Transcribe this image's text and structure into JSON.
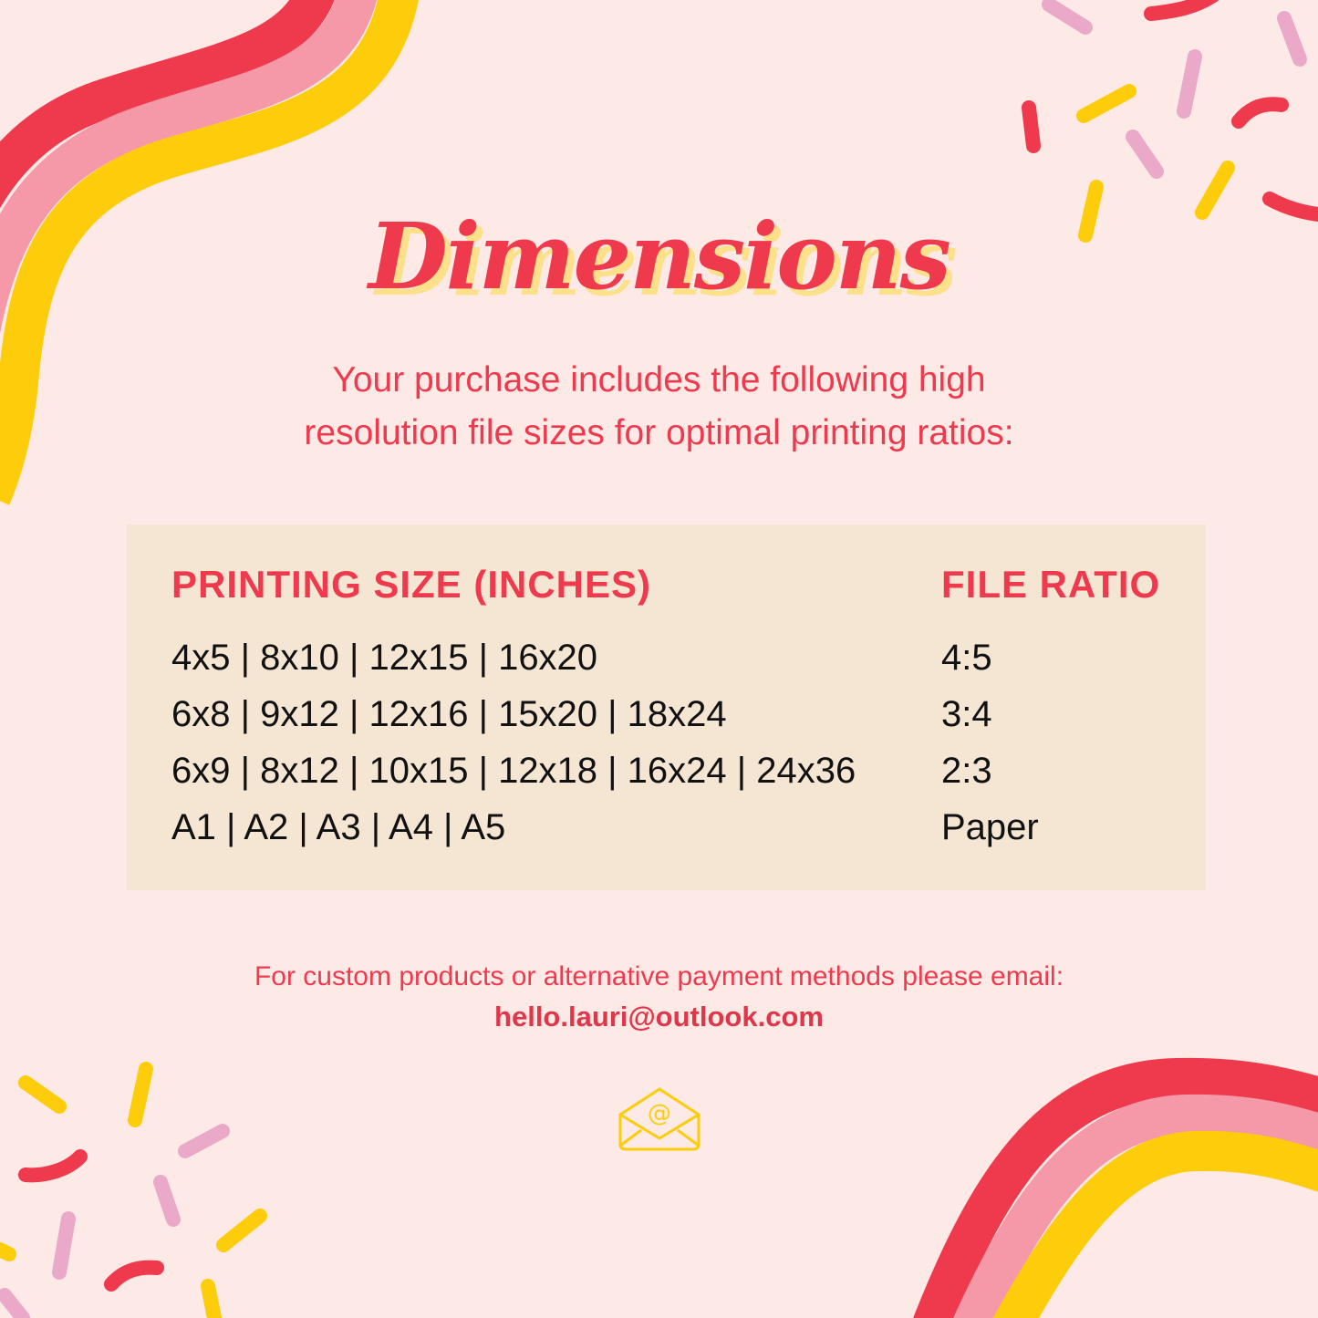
{
  "title": "Dimensions",
  "intro": [
    "Your purchase includes the following high",
    "resolution file sizes for optimal printing ratios:"
  ],
  "table": {
    "headers": [
      "PRINTING SIZE (INCHES)",
      "FILE RATIO"
    ],
    "rows": [
      {
        "sizes": "4x5 | 8x10 | 12x15 | 16x20",
        "ratio": "4:5"
      },
      {
        "sizes": "6x8 | 9x12 | 12x16 | 15x20 | 18x24",
        "ratio": "3:4"
      },
      {
        "sizes": "6x9 | 8x12 | 10x15 | 12x18 | 16x24 | 24x36",
        "ratio": "2:3"
      },
      {
        "sizes": "A1 | A2 | A3 | A4 | A5",
        "ratio": "Paper"
      }
    ]
  },
  "footer": {
    "text": "For custom products or alternative payment methods please email:",
    "email": "hello.lauri@outlook.com"
  },
  "icons": {
    "envelope": "envelope-at-icon"
  },
  "colors": {
    "accent": "#ef3a4e",
    "pink": "#f598a8",
    "yellow": "#fdcc0a",
    "background": "#fdeae7",
    "table": "#f5e5d3"
  }
}
